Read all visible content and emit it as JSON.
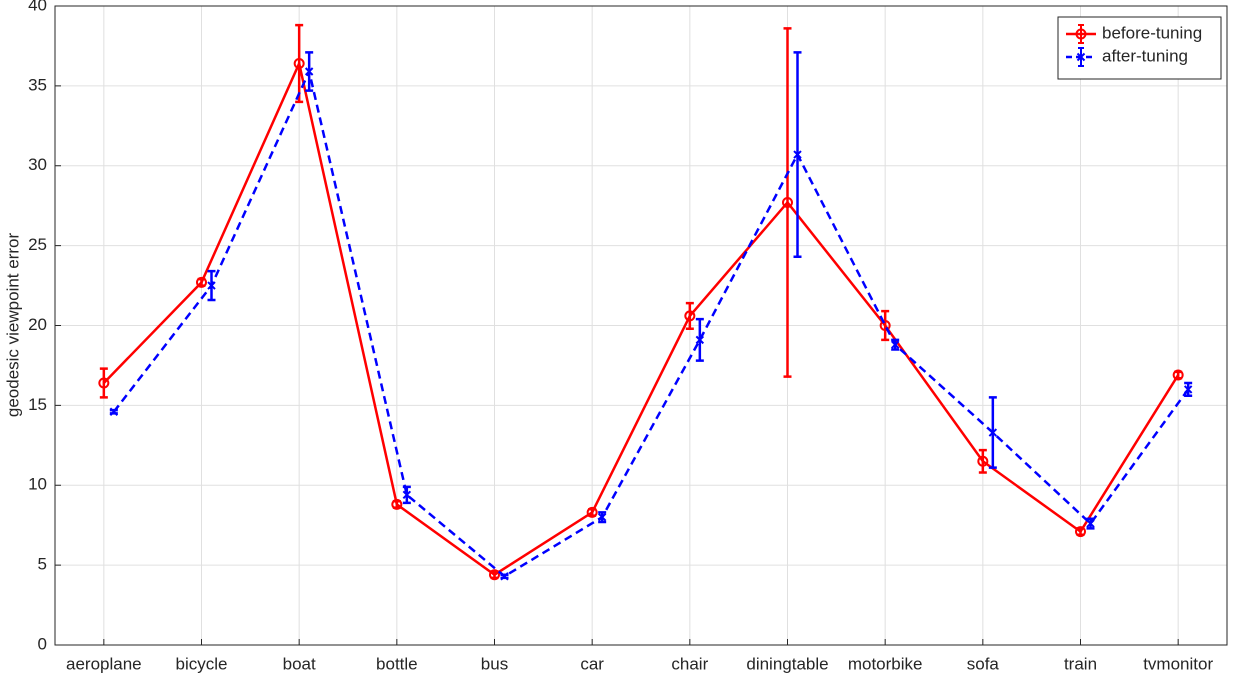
{
  "chart_data": {
    "type": "line",
    "ylabel": "geodesic viewpoint error",
    "categories": [
      "aeroplane",
      "bicycle",
      "boat",
      "bottle",
      "bus",
      "car",
      "chair",
      "diningtable",
      "motorbike",
      "sofa",
      "train",
      "tvmonitor"
    ],
    "series": [
      {
        "name": "before-tuning",
        "color": "#ff0000",
        "marker": "circle",
        "dash": "solid",
        "values": [
          16.4,
          22.7,
          36.4,
          8.8,
          4.4,
          8.3,
          20.6,
          27.7,
          20.0,
          11.5,
          7.1,
          16.9
        ],
        "errors": [
          0.9,
          0.2,
          2.4,
          0.2,
          0.2,
          0.2,
          0.8,
          10.9,
          0.9,
          0.7,
          0.2,
          0.2
        ]
      },
      {
        "name": "after-tuning",
        "color": "#0000ff",
        "marker": "x",
        "dash": "dashed",
        "values": [
          14.6,
          22.5,
          35.9,
          9.4,
          4.3,
          8.0,
          19.1,
          30.7,
          18.8,
          13.3,
          7.6,
          16.0
        ],
        "errors": [
          0.1,
          0.9,
          1.2,
          0.5,
          0.1,
          0.3,
          1.3,
          6.4,
          0.3,
          2.2,
          0.3,
          0.4
        ]
      }
    ],
    "ylim": [
      0,
      40
    ],
    "yticks": [
      0,
      5,
      10,
      15,
      20,
      25,
      30,
      35,
      40
    ],
    "grid": true,
    "legend": "northeast"
  }
}
